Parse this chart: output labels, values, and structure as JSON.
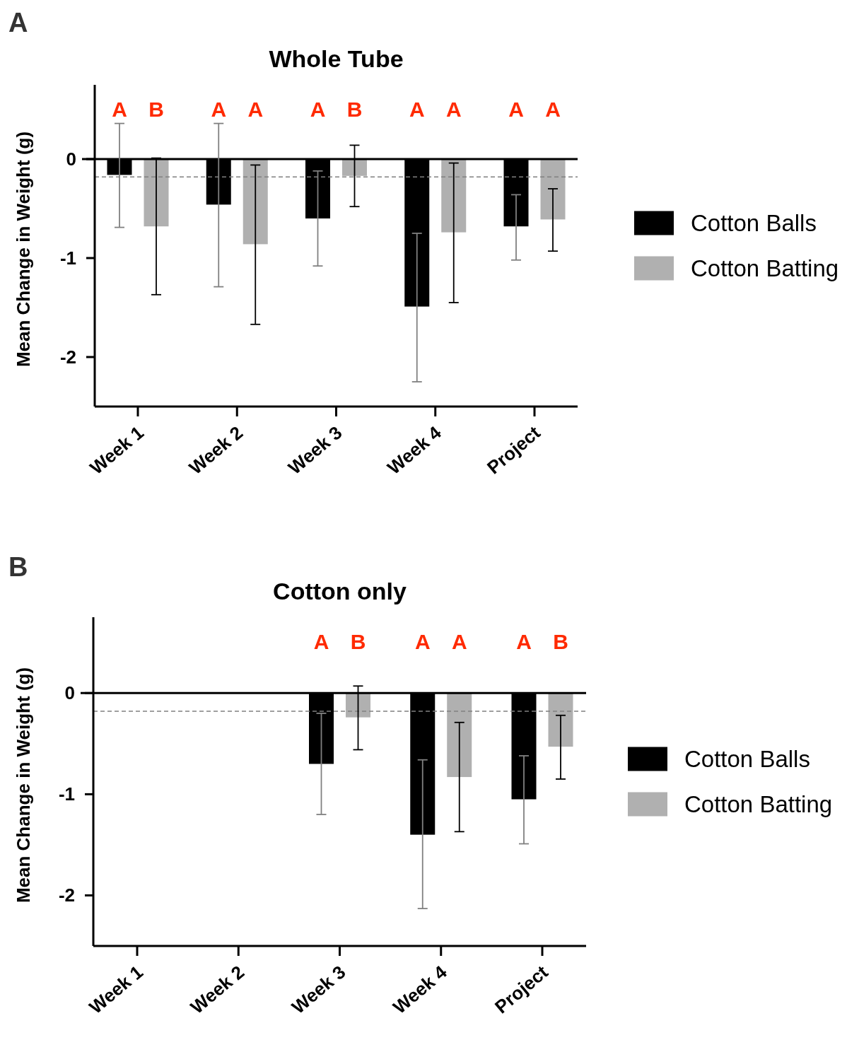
{
  "chart_data": [
    {
      "type": "bar",
      "title": "Whole Tube",
      "ylabel": "Mean Change in Weight (g)",
      "categories": [
        "Week 1",
        "Week 2",
        "Week 3",
        "Week 4",
        "Project"
      ],
      "series": [
        {
          "name": "Cotton Balls",
          "color": "#000000",
          "values": [
            -0.16,
            -0.46,
            -0.6,
            -1.49,
            -0.68
          ],
          "errors": [
            [
              -0.69,
              0.36
            ],
            [
              -1.29,
              0.36
            ],
            [
              -1.08,
              -0.12
            ],
            [
              -2.25,
              -0.75
            ],
            [
              -1.02,
              -0.36
            ]
          ]
        },
        {
          "name": "Cotton Batting",
          "color": "#b0b0b0",
          "values": [
            -0.68,
            -0.86,
            -0.17,
            -0.74,
            -0.61
          ],
          "errors": [
            [
              -1.37,
              0.01
            ],
            [
              -1.67,
              -0.06
            ],
            [
              -0.48,
              0.14
            ],
            [
              -1.45,
              -0.04
            ],
            [
              -0.93,
              -0.3
            ]
          ]
        }
      ],
      "ylim": [
        -2.5,
        0.75
      ],
      "yticks": [
        0,
        -1,
        -2
      ],
      "legend": "right",
      "ref_lines": [
        {
          "axis": "y",
          "value": 0,
          "color": "#000000",
          "line_style": "solid"
        },
        {
          "axis": "y",
          "value": -0.18,
          "color": "#808080",
          "line_style": "dashed"
        }
      ],
      "annotations": [
        "A",
        "A",
        "B",
        "A",
        "A",
        "A",
        "B",
        "A",
        "A",
        "A",
        "A"
      ]
    },
    {
      "type": "bar",
      "title": "Cotton only",
      "ylabel": "Mean Change in Weight (g)",
      "categories": [
        "Week 1",
        "Week 2",
        "Week 3",
        "Week 4",
        "Project"
      ],
      "series": [
        {
          "name": "Cotton Balls",
          "color": "#000000",
          "values": [
            null,
            null,
            -0.7,
            -1.4,
            -1.05
          ],
          "errors": [
            null,
            null,
            [
              -1.2,
              -0.2
            ],
            [
              -2.13,
              -0.66
            ],
            [
              -1.49,
              -0.62
            ]
          ]
        },
        {
          "name": "Cotton Batting",
          "color": "#b0b0b0",
          "values": [
            null,
            null,
            -0.24,
            -0.83,
            -0.53
          ],
          "errors": [
            null,
            null,
            [
              -0.56,
              0.07
            ],
            [
              -1.37,
              -0.29
            ],
            [
              -0.85,
              -0.22
            ]
          ]
        }
      ],
      "ylim": [
        -2.5,
        0.75
      ],
      "yticks": [
        0,
        -1,
        -2
      ],
      "legend": "right",
      "ref_lines": [
        {
          "axis": "y",
          "value": 0,
          "color": "#000000",
          "line_style": "solid"
        },
        {
          "axis": "y",
          "value": -0.18,
          "color": "#808080",
          "line_style": "dashed"
        }
      ],
      "annotations": [
        "B",
        "A",
        "B",
        "A",
        "A",
        "A",
        "B"
      ]
    }
  ]
}
